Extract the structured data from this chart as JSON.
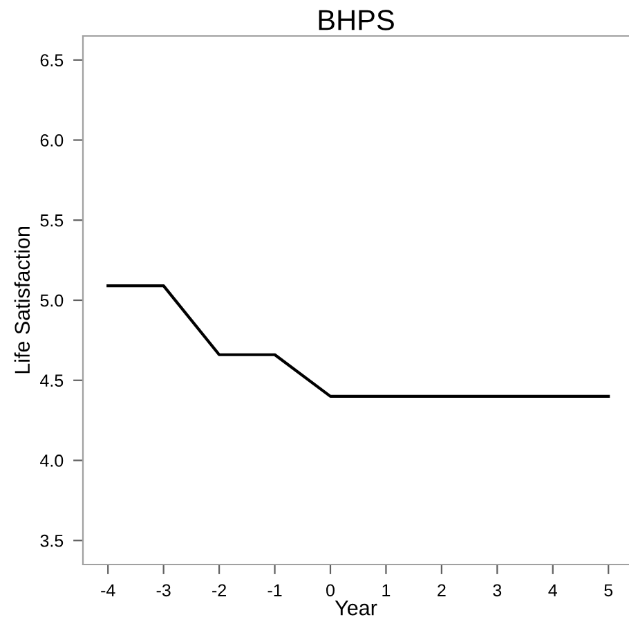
{
  "chart_data": {
    "type": "line",
    "title": "BHPS",
    "xlabel": "Year",
    "ylabel": "Life Satisfaction",
    "x": [
      -4,
      -3,
      -2,
      -1,
      0,
      1,
      2,
      3,
      4,
      5
    ],
    "series": [
      {
        "color": "#000000",
        "values": [
          5.09,
          5.09,
          4.66,
          4.66,
          4.4,
          4.4,
          4.4,
          4.4,
          4.4,
          4.4
        ]
      }
    ],
    "xlim": [
      -4.45,
      5.37
    ],
    "ylim": [
      3.35,
      6.65
    ],
    "xticks": [
      -4,
      -3,
      -2,
      -1,
      0,
      1,
      2,
      3,
      4,
      5
    ],
    "yticks": [
      {
        "value": 3.5,
        "label": "3.5"
      },
      {
        "value": 4.0,
        "label": "4.0"
      },
      {
        "value": 4.5,
        "label": "4.5"
      },
      {
        "value": 5.0,
        "label": "5.0"
      },
      {
        "value": 5.5,
        "label": "5.5"
      },
      {
        "value": 6.0,
        "label": "6.0"
      },
      {
        "value": 6.5,
        "label": "6.5"
      }
    ],
    "grid": false,
    "line_style": "solid",
    "marker": "none"
  }
}
